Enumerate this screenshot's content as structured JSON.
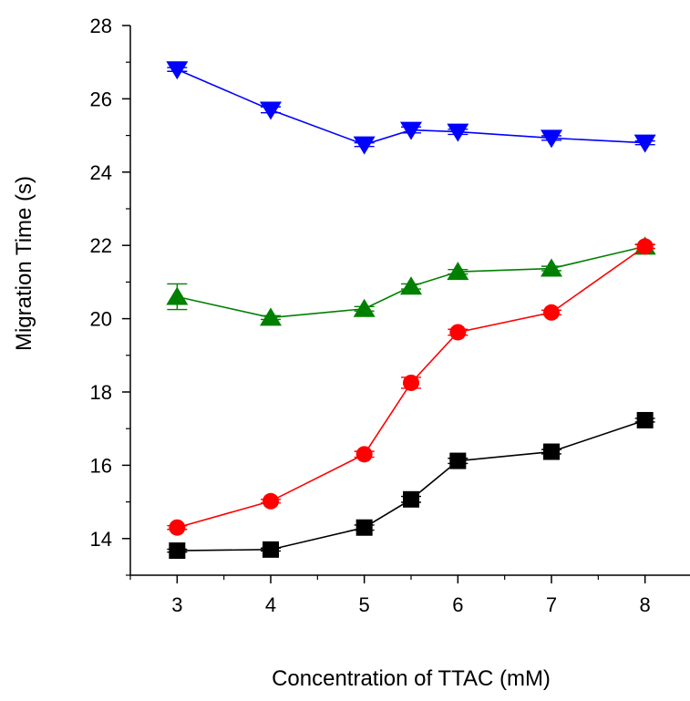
{
  "chart_data": {
    "type": "line",
    "xlabel": "Concentration of TTAC (mM)",
    "ylabel": "Migration Time (s)",
    "xlim": [
      2.5,
      8.5
    ],
    "ylim": [
      13,
      28
    ],
    "xticks": [
      3,
      4,
      5,
      6,
      7,
      8
    ],
    "yticks": [
      14,
      16,
      18,
      20,
      22,
      24,
      26,
      28
    ],
    "grid": false,
    "series": [
      {
        "marker": "triangle-down",
        "color": "#0000ff",
        "x": [
          3,
          4,
          5,
          5.5,
          6,
          7,
          8
        ],
        "values": [
          26.8,
          25.7,
          24.75,
          25.15,
          25.1,
          24.93,
          24.8
        ],
        "errors": [
          0.05,
          0.08,
          0.05,
          0.08,
          0.07,
          0.06,
          0.05
        ]
      },
      {
        "marker": "triangle-up",
        "color": "#008000",
        "x": [
          3,
          4,
          5,
          5.5,
          6,
          7,
          8
        ],
        "values": [
          20.6,
          20.03,
          20.27,
          20.88,
          21.28,
          21.37,
          21.97
        ],
        "errors": [
          0.35,
          0.05,
          0.06,
          0.07,
          0.06,
          0.06,
          0.06
        ]
      },
      {
        "marker": "circle",
        "color": "#ff0000",
        "x": [
          3,
          4,
          5,
          5.5,
          6,
          7,
          8
        ],
        "values": [
          14.3,
          15.02,
          16.3,
          18.25,
          19.63,
          20.17,
          21.97
        ],
        "errors": [
          0.05,
          0.05,
          0.08,
          0.15,
          0.08,
          0.06,
          0.05
        ]
      },
      {
        "marker": "square",
        "color": "#000000",
        "x": [
          3,
          4,
          5,
          5.5,
          6,
          7,
          8
        ],
        "values": [
          13.67,
          13.7,
          14.3,
          15.07,
          16.12,
          16.37,
          17.23
        ],
        "errors": [
          0.04,
          0.04,
          0.07,
          0.08,
          0.07,
          0.06,
          0.05
        ]
      }
    ]
  }
}
